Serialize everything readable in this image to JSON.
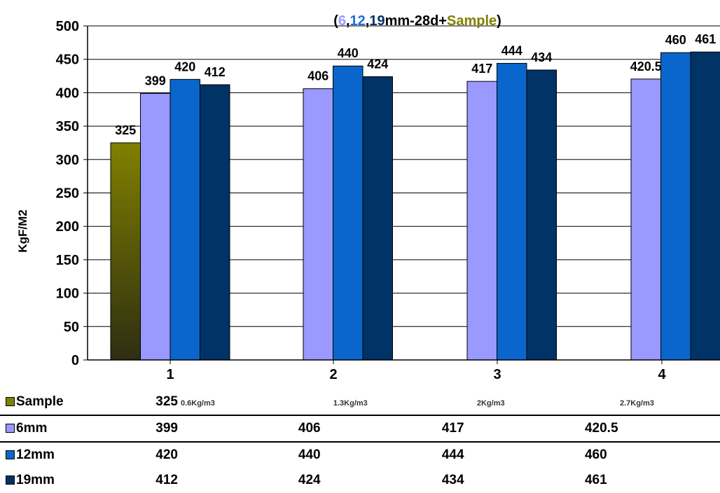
{
  "chart_data": {
    "type": "bar",
    "title_parts": [
      {
        "text": "(",
        "color": "#000000"
      },
      {
        "text": "6",
        "color": "#9999ff"
      },
      {
        "text": ",",
        "color": "#000000"
      },
      {
        "text": "12",
        "color": "#1f6fd8"
      },
      {
        "text": ",",
        "color": "#000000"
      },
      {
        "text": "19",
        "color": "#003366"
      },
      {
        "text": "mm-28d+",
        "color": "#000000"
      },
      {
        "text": "Sample",
        "color": "#808000"
      },
      {
        "text": ")",
        "color": "#000000"
      }
    ],
    "ylabel": "KgF/M2",
    "xlabel": "",
    "ylim": [
      0,
      500
    ],
    "yticks": [
      0,
      50,
      100,
      150,
      200,
      250,
      300,
      350,
      400,
      450,
      500
    ],
    "categories": [
      "1",
      "2",
      "3",
      "4"
    ],
    "legend_placement": "table-below",
    "series": [
      {
        "name": "Sample",
        "color": "#808000",
        "values": [
          325,
          null,
          null,
          null
        ],
        "labels": [
          "325",
          "",
          "",
          ""
        ]
      },
      {
        "name": "6mm",
        "color": "#9999ff",
        "values": [
          399,
          406,
          417,
          420.5
        ],
        "labels": [
          "399",
          "406",
          "417",
          "420.5"
        ]
      },
      {
        "name": "12mm",
        "color": "#0a66cc",
        "values": [
          420,
          440,
          444,
          460
        ],
        "labels": [
          "420",
          "440",
          "444",
          "460"
        ]
      },
      {
        "name": "19mm",
        "color": "#003366",
        "values": [
          412,
          424,
          434,
          461
        ],
        "labels": [
          "412",
          "424",
          "434",
          "461"
        ]
      }
    ],
    "table": {
      "rows": [
        {
          "series": "Sample",
          "color": "#808000",
          "cells": [
            "325",
            "",
            "",
            ""
          ],
          "notes": [
            "0.6Kg/m3",
            "1.3Kg/m3",
            "2Kg/m3",
            "2.7Kg/m3"
          ]
        },
        {
          "series": "6mm",
          "color": "#9999ff",
          "cells": [
            "399",
            "406",
            "417",
            "420.5"
          ],
          "notes": [
            "",
            "",
            "",
            ""
          ]
        },
        {
          "series": "12mm",
          "color": "#0a66cc",
          "cells": [
            "420",
            "440",
            "444",
            "460"
          ],
          "notes": [
            "",
            "",
            "",
            ""
          ]
        },
        {
          "series": "19mm",
          "color": "#003366",
          "cells": [
            "412",
            "424",
            "434",
            "461"
          ],
          "notes": [
            "",
            "",
            "",
            ""
          ]
        }
      ]
    }
  }
}
